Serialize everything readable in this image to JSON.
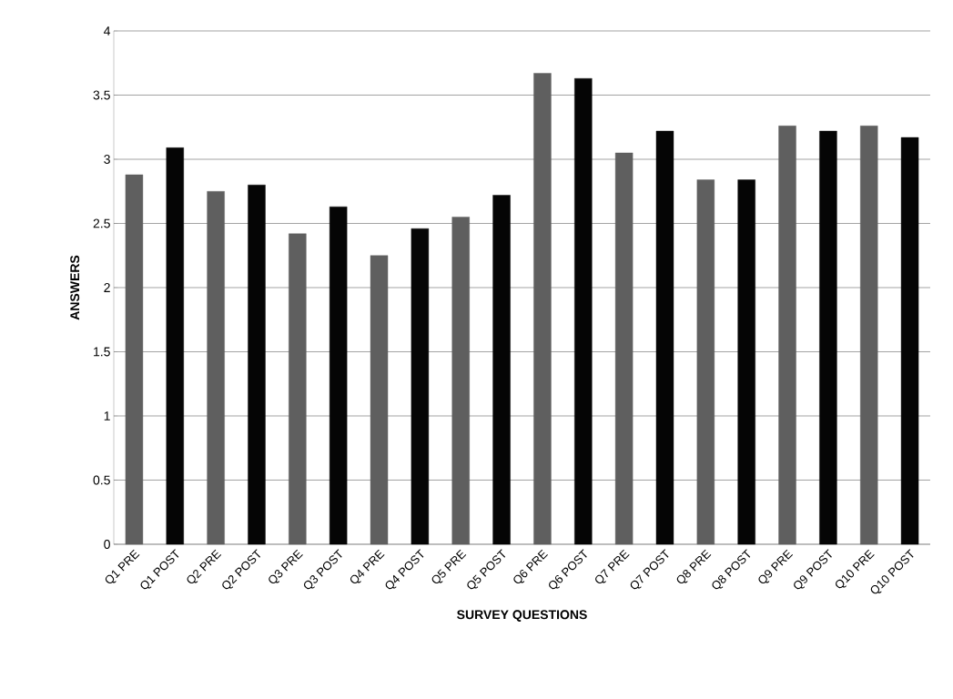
{
  "chart_data": {
    "type": "bar",
    "xlabel": "SURVEY QUESTIONS",
    "ylabel": "ANSWERS",
    "categories": [
      "Q1 PRE",
      "Q1 POST",
      "Q2 PRE",
      "Q2 POST",
      "Q3 PRE",
      "Q3 POST",
      "Q4 PRE",
      "Q4 POST",
      "Q5 PRE",
      "Q5 POST",
      "Q6 PRE",
      "Q6 POST",
      "Q7 PRE",
      "Q7 POST",
      "Q8 PRE",
      "Q8 POST",
      "Q9 PRE",
      "Q9 POST",
      "Q10 PRE",
      "Q10 POST"
    ],
    "values": [
      2.88,
      3.09,
      2.75,
      2.8,
      2.42,
      2.63,
      2.25,
      2.46,
      2.55,
      2.72,
      3.67,
      3.63,
      3.05,
      3.22,
      2.84,
      2.84,
      3.26,
      3.22,
      3.26,
      3.17
    ],
    "colors": [
      "#5f5f5f",
      "#050505",
      "#5f5f5f",
      "#050505",
      "#5f5f5f",
      "#050505",
      "#5f5f5f",
      "#050505",
      "#5f5f5f",
      "#050505",
      "#5f5f5f",
      "#050505",
      "#5f5f5f",
      "#050505",
      "#5f5f5f",
      "#050505",
      "#5f5f5f",
      "#050505",
      "#5f5f5f",
      "#050505"
    ],
    "ylim": [
      0,
      4
    ],
    "yticks": [
      0,
      0.5,
      1,
      1.5,
      2,
      2.5,
      3,
      3.5,
      4
    ],
    "grid": "y"
  }
}
